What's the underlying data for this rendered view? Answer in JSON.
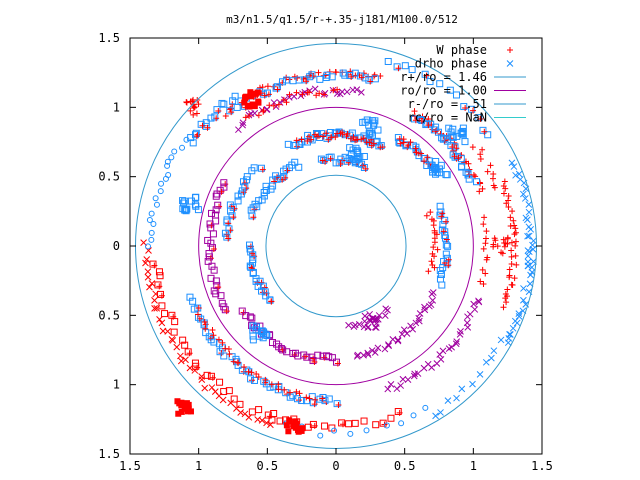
{
  "chart_data": {
    "type": "scatter",
    "title": "m3/n1.5/q1.5/r-+.35-j181/M100.0/512",
    "xlim": [
      -1.5,
      1.5
    ],
    "ylim": [
      -1.5,
      1.5
    ],
    "x_tick_values": [
      -1.5,
      -1,
      -0.5,
      0,
      0.5,
      1,
      1.5
    ],
    "x_tick_labels": [
      "1.5",
      "1",
      "0.5",
      "0",
      "0.5",
      "1",
      "1.5"
    ],
    "y_tick_values": [
      1.5,
      1,
      0.5,
      0,
      -0.5,
      -1,
      -1.5
    ],
    "y_tick_labels": [
      "1.5",
      "1",
      "0.5",
      "0",
      "0.5",
      "1",
      "1.5"
    ],
    "grid": false,
    "legend_position": "top-right",
    "series": [
      {
        "name": "W phase",
        "marker": "plus",
        "color": "#ff0000"
      },
      {
        "name": "drho phase",
        "marker": "cross",
        "color": "#1e90ff"
      },
      {
        "name": "r+/ro = 1.46",
        "type": "circle",
        "radius": 1.46,
        "color": "#3399cc"
      },
      {
        "name": "ro/ro = 1.00",
        "type": "circle",
        "radius": 1.0,
        "color": "#a000a0"
      },
      {
        "name": "r-/ro = .51",
        "type": "circle",
        "radius": 0.51,
        "color": "#3399cc"
      },
      {
        "name": "rc/ro = NaN",
        "type": "circle",
        "radius": null,
        "color": "#33cccc"
      }
    ],
    "arcs": [
      {
        "r": 1.38,
        "a0": 180,
        "a1": 250,
        "n": 40,
        "type": "cross",
        "color": "#ff0000"
      },
      {
        "r": 1.32,
        "a0": 185,
        "a1": 255,
        "n": 28,
        "type": "square",
        "color": "#ff0000"
      },
      {
        "r": 1.3,
        "a0": 250,
        "a1": 290,
        "n": 16,
        "type": "square",
        "color": "#ff0000"
      },
      {
        "r": 1.35,
        "a0": 255,
        "a1": 300,
        "n": 10,
        "type": "circle",
        "color": "#1e90ff"
      },
      {
        "r": 1.4,
        "a0": 300,
        "a1": 340,
        "n": 14,
        "type": "cross",
        "color": "#1e90ff"
      },
      {
        "r": 1.42,
        "a0": 330,
        "a1": 360,
        "n": 18,
        "type": "cross",
        "color": "#1e90ff"
      },
      {
        "r": 1.3,
        "a0": -20,
        "a1": 20,
        "n": 36,
        "type": "plus",
        "color": "#ff0000"
      },
      {
        "r": 1.42,
        "a0": -8,
        "a1": 25,
        "n": 24,
        "type": "cross",
        "color": "#1e90ff"
      },
      {
        "r": 1.25,
        "a0": 20,
        "a1": 35,
        "n": 10,
        "type": "plus",
        "color": "#ff0000"
      },
      {
        "r": 1.38,
        "a0": 35,
        "a1": 75,
        "n": 14,
        "type": "square",
        "color": "#1e90ff"
      },
      {
        "r": 1.25,
        "a0": 75,
        "a1": 130,
        "n": 40,
        "type": "plus",
        "color": "#ff0000"
      },
      {
        "r": 1.23,
        "a0": 76,
        "a1": 128,
        "n": 30,
        "type": "square",
        "color": "#1e90ff"
      },
      {
        "r": 1.3,
        "a0": 125,
        "a1": 145,
        "n": 14,
        "type": "square",
        "color": "#1e90ff"
      },
      {
        "r": 1.35,
        "a0": 145,
        "a1": 180,
        "n": 18,
        "type": "circle",
        "color": "#1e90ff"
      },
      {
        "r": 1.12,
        "a0": 20,
        "a1": 60,
        "n": 30,
        "type": "plus",
        "color": "#ff0000"
      },
      {
        "r": 1.1,
        "a0": 25,
        "a1": 58,
        "n": 26,
        "type": "square",
        "color": "#1e90ff"
      },
      {
        "r": 1.12,
        "a0": 80,
        "a1": 130,
        "n": 30,
        "type": "cross",
        "color": "#a000a0"
      },
      {
        "r": 1.12,
        "a0": 90,
        "a1": 125,
        "n": 20,
        "type": "plus",
        "color": "#ff0000"
      },
      {
        "r": 1.12,
        "a0": 200,
        "a1": 270,
        "n": 44,
        "type": "square",
        "color": "#1e90ff"
      },
      {
        "r": 1.1,
        "a0": 205,
        "a1": 265,
        "n": 30,
        "type": "plus",
        "color": "#ff0000"
      },
      {
        "r": 1.1,
        "a0": 290,
        "a1": 340,
        "n": 30,
        "type": "cross",
        "color": "#a000a0"
      },
      {
        "r": 1.1,
        "a0": 345,
        "a1": 370,
        "n": 12,
        "type": "plus",
        "color": "#ff0000"
      },
      {
        "r": 0.9,
        "a0": 35,
        "a1": 60,
        "n": 18,
        "type": "square",
        "color": "#1e90ff"
      },
      {
        "r": 0.9,
        "a0": 40,
        "a1": 58,
        "n": 12,
        "type": "plus",
        "color": "#ff0000"
      },
      {
        "r": 0.8,
        "a0": 65,
        "a1": 115,
        "n": 36,
        "type": "square",
        "color": "#1e90ff"
      },
      {
        "r": 0.8,
        "a0": 70,
        "a1": 110,
        "n": 20,
        "type": "plus",
        "color": "#ff0000"
      },
      {
        "r": 0.8,
        "a0": 135,
        "a1": 175,
        "n": 20,
        "type": "square",
        "color": "#1e90ff"
      },
      {
        "r": 0.92,
        "a0": 150,
        "a1": 210,
        "n": 30,
        "type": "square",
        "color": "#a000a0"
      },
      {
        "r": 0.82,
        "a0": 215,
        "a1": 270,
        "n": 30,
        "type": "square",
        "color": "#a000a0"
      },
      {
        "r": 0.8,
        "a0": 280,
        "a1": 335,
        "n": 30,
        "type": "cross",
        "color": "#a000a0"
      },
      {
        "r": 0.8,
        "a0": 340,
        "a1": 380,
        "n": 20,
        "type": "square",
        "color": "#1e90ff"
      },
      {
        "r": 0.72,
        "a0": 345,
        "a1": 380,
        "n": 18,
        "type": "plus",
        "color": "#ff0000"
      },
      {
        "r": 0.65,
        "a0": 115,
        "a1": 160,
        "n": 24,
        "type": "square",
        "color": "#1e90ff"
      },
      {
        "r": 0.62,
        "a0": 180,
        "a1": 220,
        "n": 20,
        "type": "square",
        "color": "#1e90ff"
      },
      {
        "r": 0.62,
        "a0": 70,
        "a1": 100,
        "n": 14,
        "type": "square",
        "color": "#1e90ff"
      },
      {
        "r": 0.6,
        "a0": 280,
        "a1": 310,
        "n": 14,
        "type": "cross",
        "color": "#a000a0"
      }
    ],
    "clusters": [
      {
        "x": -1.05,
        "y": 1.0,
        "type": "plus",
        "color": "#ff0000"
      },
      {
        "x": -0.62,
        "y": 1.05,
        "type": "square",
        "color": "#ff0000"
      },
      {
        "x": -1.06,
        "y": 0.3,
        "type": "square",
        "color": "#1e90ff"
      },
      {
        "x": -1.1,
        "y": -1.15,
        "type": "square",
        "color": "#ff0000"
      },
      {
        "x": -0.3,
        "y": -1.3,
        "type": "square",
        "color": "#ff0000"
      },
      {
        "x": 0.15,
        "y": 0.65,
        "type": "square",
        "color": "#1e90ff"
      },
      {
        "x": -0.55,
        "y": -0.62,
        "type": "square",
        "color": "#1e90ff"
      },
      {
        "x": 0.75,
        "y": 0.55,
        "type": "square",
        "color": "#1e90ff"
      },
      {
        "x": 0.25,
        "y": -0.55,
        "type": "cross",
        "color": "#a000a0"
      },
      {
        "x": 1.2,
        "y": 0.0,
        "type": "plus",
        "color": "#ff0000"
      },
      {
        "x": 0.25,
        "y": 0.85,
        "type": "square",
        "color": "#1e90ff"
      },
      {
        "x": 0.88,
        "y": 0.8,
        "type": "square",
        "color": "#1e90ff"
      }
    ]
  }
}
